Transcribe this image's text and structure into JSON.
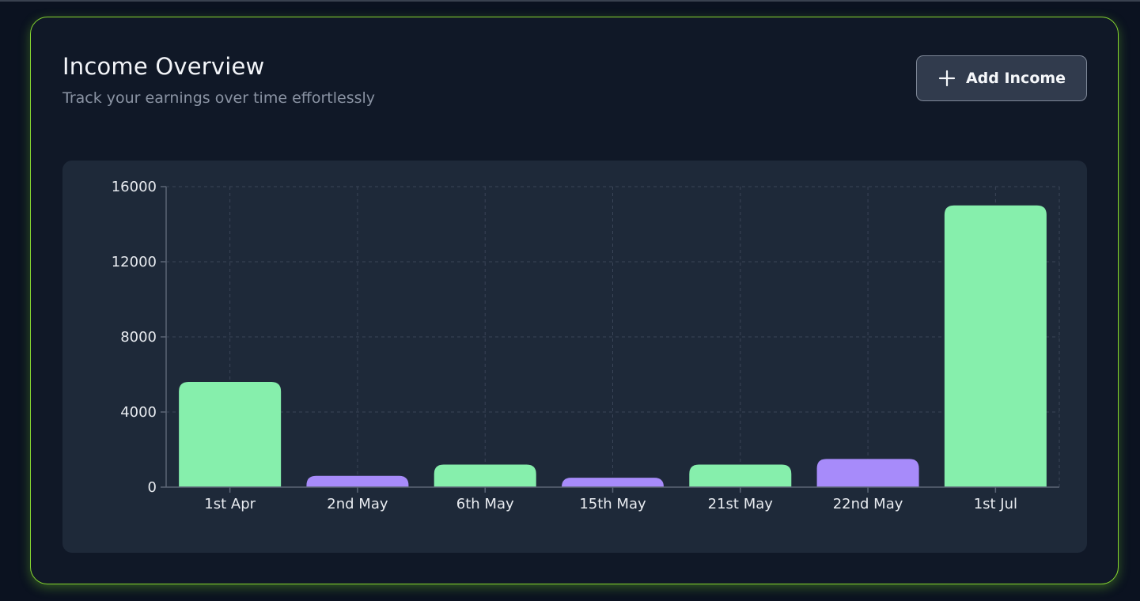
{
  "header": {
    "title": "Income Overview",
    "subtitle": "Track your earnings over time effortlessly"
  },
  "actions": {
    "add_income_label": "Add Income",
    "add_income_icon": "plus-icon"
  },
  "colors": {
    "accent_border": "#86d630",
    "bar_primary": "#86efac",
    "bar_secondary": "#a78bfa"
  },
  "chart_data": {
    "type": "bar",
    "categories": [
      "1st Apr",
      "2nd May",
      "6th May",
      "15th May",
      "21st May",
      "22nd May",
      "1st Jul"
    ],
    "values": [
      5600,
      600,
      1200,
      500,
      1200,
      1500,
      15000
    ],
    "ylim": [
      0,
      16000
    ],
    "yticks": [
      0,
      4000,
      8000,
      12000,
      16000
    ],
    "grid": true,
    "bar_colors": [
      "#86efac",
      "#a78bfa",
      "#86efac",
      "#a78bfa",
      "#86efac",
      "#a78bfa",
      "#86efac"
    ]
  }
}
